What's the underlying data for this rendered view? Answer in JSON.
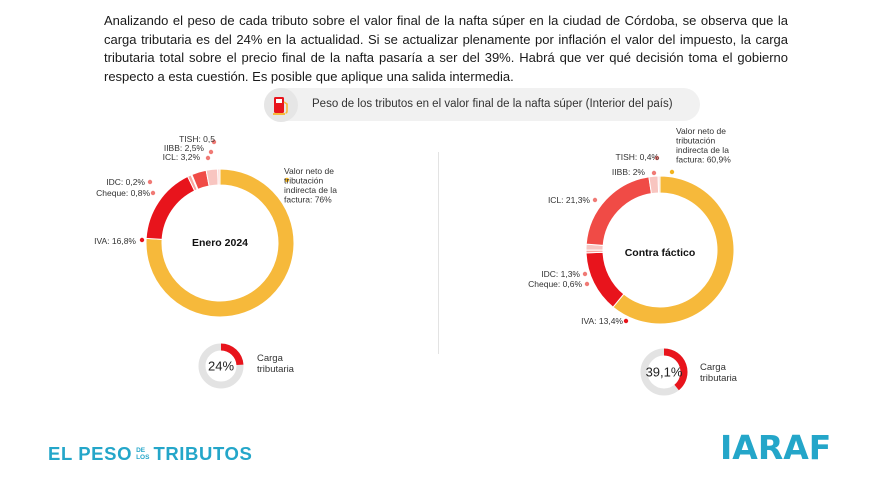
{
  "intro_text": "Analizando el peso de cada tributo sobre el valor final de la nafta súper en la ciudad de Córdoba, se observa que la carga tributaria es del 24% en la actualidad. Si se actualizar plenamente por inflación el valor del impuesto, la carga tributaria total sobre el precio final de la nafta pasaría a ser del 39%. Habrá que ver qué decisión toma el gobierno respecto a esta cuestión. Es posible que aplique una salida intermedia.",
  "section_title": "Peso de los tributos en el valor final de la nafta súper (Interior del país)",
  "title_icon": "fuel-pump-icon",
  "colors": {
    "neto": "#f6b93b",
    "iva": "#e8141c",
    "cheque": "#f9a7a0",
    "idc": "#f7c6c2",
    "icl": "#f04b46",
    "iibb": "#f8c5c0",
    "tish": "#fbd7d3",
    "gauge_fill": "#e8141c",
    "gauge_track": "#e3e3e3",
    "brand": "#24a6c9"
  },
  "chart_data": [
    {
      "type": "pie",
      "variant": "donut",
      "center_label": "Enero 2024",
      "slices": [
        {
          "key": "neto",
          "label": "Valor neto de tributación indirecta de la factura: 76%",
          "value": 76.0
        },
        {
          "key": "iva",
          "label": "IVA: 16,8%",
          "value": 16.8
        },
        {
          "key": "cheque",
          "label": "Cheque: 0,8%",
          "value": 0.8
        },
        {
          "key": "idc",
          "label": "IDC: 0,2%",
          "value": 0.2
        },
        {
          "key": "icl",
          "label": "ICL: 3,2%",
          "value": 3.2
        },
        {
          "key": "iibb",
          "label": "IIBB: 2,5%",
          "value": 2.5
        },
        {
          "key": "tish",
          "label": "TISH: 0,5",
          "value": 0.5
        }
      ],
      "gauge": {
        "value": 24,
        "display": "24%",
        "label": "Carga tributaria"
      }
    },
    {
      "type": "pie",
      "variant": "donut",
      "center_label": "Contra fáctico",
      "slices": [
        {
          "key": "neto",
          "label": "Valor neto de tributación indirecta de la factura: 60,9%",
          "value": 60.9
        },
        {
          "key": "iva",
          "label": "IVA: 13,4%",
          "value": 13.4
        },
        {
          "key": "cheque",
          "label": "Cheque: 0,6%",
          "value": 0.6
        },
        {
          "key": "idc",
          "label": "IDC: 1,3%",
          "value": 1.3
        },
        {
          "key": "icl",
          "label": "ICL: 21,3%",
          "value": 21.3
        },
        {
          "key": "iibb",
          "label": "IIBB: 2%",
          "value": 2.0
        },
        {
          "key": "tish",
          "label": "TISH: 0,4%",
          "value": 0.4
        }
      ],
      "gauge": {
        "value": 39.1,
        "display": "39,1%",
        "label": "Carga tributaria"
      }
    }
  ],
  "brand_left": {
    "part1": "EL PESO",
    "small_top": "DE",
    "small_bottom": "LOS",
    "part2": "TRIBUTOS"
  },
  "brand_right": "IARAF"
}
